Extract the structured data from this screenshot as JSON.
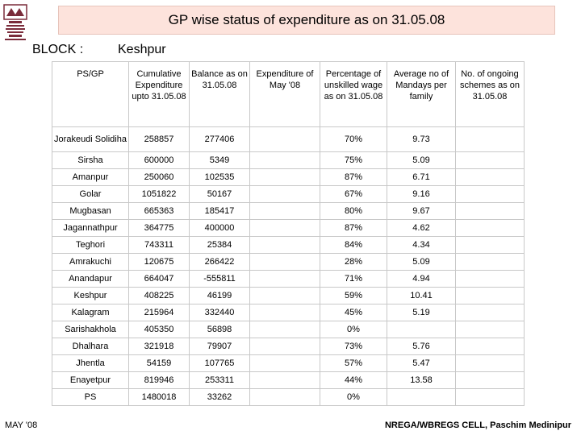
{
  "title": "GP wise status of expenditure as on 31.05.08",
  "block": {
    "label": "BLOCK :",
    "value": "Keshpur"
  },
  "headers": [
    "PS/GP",
    "Cumulative Expenditure upto 31.05.08",
    "Balance as on 31.05.08",
    "Expenditure of May '08",
    "Percentage of unskilled wage as on 31.05.08",
    "Average no of Mandays per family",
    "No. of ongoing schemes as on 31.05.08"
  ],
  "rows": [
    {
      "name": "Jorakeudi Solidiha",
      "cumulative": "258857",
      "balance": "277406",
      "may": "",
      "pct": "70%",
      "avg": "9.73",
      "schemes": ""
    },
    {
      "name": "Sirsha",
      "cumulative": "600000",
      "balance": "5349",
      "may": "",
      "pct": "75%",
      "avg": "5.09",
      "schemes": ""
    },
    {
      "name": "Amanpur",
      "cumulative": "250060",
      "balance": "102535",
      "may": "",
      "pct": "87%",
      "avg": "6.71",
      "schemes": ""
    },
    {
      "name": "Golar",
      "cumulative": "1051822",
      "balance": "50167",
      "may": "",
      "pct": "67%",
      "avg": "9.16",
      "schemes": ""
    },
    {
      "name": "Mugbasan",
      "cumulative": "665363",
      "balance": "185417",
      "may": "",
      "pct": "80%",
      "avg": "9.67",
      "schemes": ""
    },
    {
      "name": "Jagannathpur",
      "cumulative": "364775",
      "balance": "400000",
      "may": "",
      "pct": "87%",
      "avg": "4.62",
      "schemes": ""
    },
    {
      "name": "Teghori",
      "cumulative": "743311",
      "balance": "25384",
      "may": "",
      "pct": "84%",
      "avg": "4.34",
      "schemes": ""
    },
    {
      "name": "Amrakuchi",
      "cumulative": "120675",
      "balance": "266422",
      "may": "",
      "pct": "28%",
      "avg": "5.09",
      "schemes": ""
    },
    {
      "name": "Anandapur",
      "cumulative": "664047",
      "balance": "-555811",
      "may": "",
      "pct": "71%",
      "avg": "4.94",
      "schemes": ""
    },
    {
      "name": "Keshpur",
      "cumulative": "408225",
      "balance": "46199",
      "may": "",
      "pct": "59%",
      "avg": "10.41",
      "schemes": ""
    },
    {
      "name": "Kalagram",
      "cumulative": "215964",
      "balance": "332440",
      "may": "",
      "pct": "45%",
      "avg": "5.19",
      "schemes": ""
    },
    {
      "name": "Sarishakhola",
      "cumulative": "405350",
      "balance": "56898",
      "may": "",
      "pct": "0%",
      "avg": "",
      "schemes": ""
    },
    {
      "name": "Dhalhara",
      "cumulative": "321918",
      "balance": "79907",
      "may": "",
      "pct": "73%",
      "avg": "5.76",
      "schemes": ""
    },
    {
      "name": "Jhentla",
      "cumulative": "54159",
      "balance": "107765",
      "may": "",
      "pct": "57%",
      "avg": "5.47",
      "schemes": ""
    },
    {
      "name": "Enayetpur",
      "cumulative": "819946",
      "balance": "253311",
      "may": "",
      "pct": "44%",
      "avg": "13.58",
      "schemes": ""
    },
    {
      "name": "PS",
      "cumulative": "1480018",
      "balance": "33262",
      "may": "",
      "pct": "0%",
      "avg": "",
      "schemes": ""
    }
  ],
  "footer": {
    "left": "MAY '08",
    "right": "NREGA/WBREGS CELL, Paschim Medinipur"
  },
  "colors": {
    "title_bg": "#fde3dc",
    "grid": "#c8c8c8",
    "logo": "#7a2b3a"
  }
}
